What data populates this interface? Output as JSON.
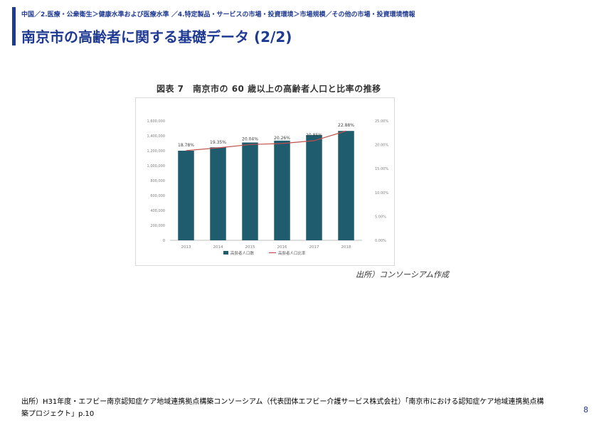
{
  "header": {
    "breadcrumb": "中国／2.医療・公衆衛生＞健康水準および医療水準 ／4.特定製品・サービスの市場・投資環境＞市場規模／その他の市場・投資環境情報",
    "title": "南京市の高齢者に関する基礎データ (2/2)"
  },
  "figure": {
    "title": "図表 7　南京市の 60 歳以上の高齢者人口と比率の推移",
    "source": "出所）コンソーシアム作成"
  },
  "colors": {
    "accent": "#1f3a93",
    "bar": "#1f5c6e",
    "line": "#c0504d"
  },
  "chart_data": {
    "type": "bar",
    "title": "図表 7　南京市の 60 歳以上の高齢者人口と比率の推移",
    "categories": [
      "2013",
      "2014",
      "2015",
      "2016",
      "2017",
      "2018"
    ],
    "series": [
      {
        "name": "高齢者人口数",
        "type": "bar",
        "axis": "left",
        "values": [
          1200000,
          1245000,
          1310000,
          1335000,
          1410000,
          1465000
        ]
      },
      {
        "name": "高齢者人口比率",
        "type": "line",
        "axis": "right",
        "values": [
          18.78,
          19.35,
          20.04,
          20.26,
          20.85,
          22.88
        ],
        "labels": [
          "18.78%",
          "19.35%",
          "20.04%",
          "20.26%",
          "20.85%",
          "22.88%"
        ]
      }
    ],
    "ylim": [
      0,
      1600000
    ],
    "y_ticks": [
      "0",
      "200,000",
      "400,000",
      "600,000",
      "800,000",
      "1,000,000",
      "1,200,000",
      "1,400,000",
      "1,600,000"
    ],
    "y2lim": [
      0,
      25
    ],
    "y2_ticks": [
      "0.00%",
      "5.00%",
      "10.00%",
      "15.00%",
      "20.00%",
      "25.00%"
    ],
    "legend_position": "bottom",
    "grid": false
  },
  "footer": {
    "source": "出所）H31年度・エフビー南京認知症ケア地域連携拠点構築コンソーシアム（代表団体エフビー介護サービス株式会社）「南京市における認知症ケア地域連携拠点構築プロジェクト」p.10",
    "page_number": "8"
  }
}
